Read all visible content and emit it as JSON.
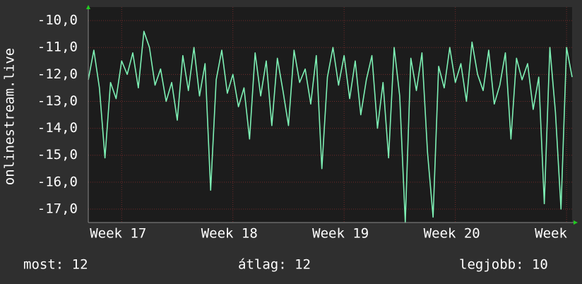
{
  "chart_data": {
    "type": "line",
    "y_label": "onlinestream.live",
    "x": [
      16.7,
      16.75,
      16.8,
      16.85,
      16.9,
      16.95,
      17.0,
      17.05,
      17.1,
      17.15,
      17.2,
      17.25,
      17.3,
      17.35,
      17.4,
      17.45,
      17.5,
      17.55,
      17.6,
      17.65,
      17.7,
      17.75,
      17.8,
      17.85,
      17.9,
      17.95,
      18.0,
      18.05,
      18.1,
      18.15,
      18.2,
      18.25,
      18.3,
      18.35,
      18.4,
      18.45,
      18.5,
      18.55,
      18.6,
      18.65,
      18.7,
      18.75,
      18.8,
      18.85,
      18.9,
      18.95,
      19.0,
      19.05,
      19.1,
      19.15,
      19.2,
      19.25,
      19.3,
      19.35,
      19.4,
      19.45,
      19.5,
      19.55,
      19.6,
      19.65,
      19.7,
      19.75,
      19.8,
      19.85,
      19.9,
      19.95,
      20.0,
      20.05,
      20.1,
      20.15,
      20.2,
      20.25,
      20.3,
      20.35,
      20.4,
      20.45,
      20.5,
      20.55,
      20.6,
      20.65,
      20.7,
      20.75,
      20.8,
      20.85,
      20.9,
      20.95,
      21.0,
      21.05
    ],
    "series": [
      {
        "color": "#7df0b4",
        "values": [
          -12.2,
          -11.1,
          -12.5,
          -15.1,
          -12.3,
          -12.9,
          -11.5,
          -12.0,
          -11.2,
          -12.5,
          -10.4,
          -11.0,
          -12.4,
          -11.8,
          -13.0,
          -12.3,
          -13.7,
          -11.3,
          -12.6,
          -11.0,
          -12.8,
          -11.6,
          -16.3,
          -12.2,
          -11.1,
          -12.7,
          -12.0,
          -13.2,
          -12.5,
          -14.4,
          -11.2,
          -12.8,
          -11.5,
          -13.9,
          -11.4,
          -12.6,
          -13.9,
          -11.1,
          -12.3,
          -11.8,
          -13.1,
          -11.3,
          -15.5,
          -12.1,
          -11.0,
          -12.4,
          -11.3,
          -12.9,
          -11.5,
          -13.5,
          -12.2,
          -11.3,
          -14.0,
          -12.3,
          -15.1,
          -11.0,
          -12.8,
          -17.5,
          -11.4,
          -12.6,
          -11.2,
          -14.9,
          -17.3,
          -11.7,
          -12.5,
          -11.0,
          -12.3,
          -11.6,
          -13.0,
          -10.8,
          -12.0,
          -12.6,
          -11.1,
          -13.1,
          -12.4,
          -11.2,
          -14.4,
          -11.4,
          -12.2,
          -11.6,
          -13.3,
          -12.1,
          -16.8,
          -11.0,
          -13.4,
          -17.0,
          -11.0,
          -12.1
        ]
      }
    ],
    "xlim": [
      16.7,
      21.05
    ],
    "xticks": [
      {
        "value": 17,
        "label": "Week 17"
      },
      {
        "value": 18,
        "label": "Week 18"
      },
      {
        "value": 19,
        "label": "Week 19"
      },
      {
        "value": 20,
        "label": "Week 20"
      },
      {
        "value": 21,
        "label": "Week"
      }
    ],
    "ylim": [
      -17.5,
      -9.5
    ],
    "yticks": [
      {
        "value": -10,
        "label": "-10,0"
      },
      {
        "value": -11,
        "label": "-11,0"
      },
      {
        "value": -12,
        "label": "-12,0"
      },
      {
        "value": -13,
        "label": "-13,0"
      },
      {
        "value": -14,
        "label": "-14,0"
      },
      {
        "value": -15,
        "label": "-15,0"
      },
      {
        "value": -16,
        "label": "-16,0"
      },
      {
        "value": -17,
        "label": "-17,0"
      }
    ],
    "grid": true,
    "footer": [
      "most: 12",
      "átlag: 12",
      "legjobb: 10"
    ]
  }
}
